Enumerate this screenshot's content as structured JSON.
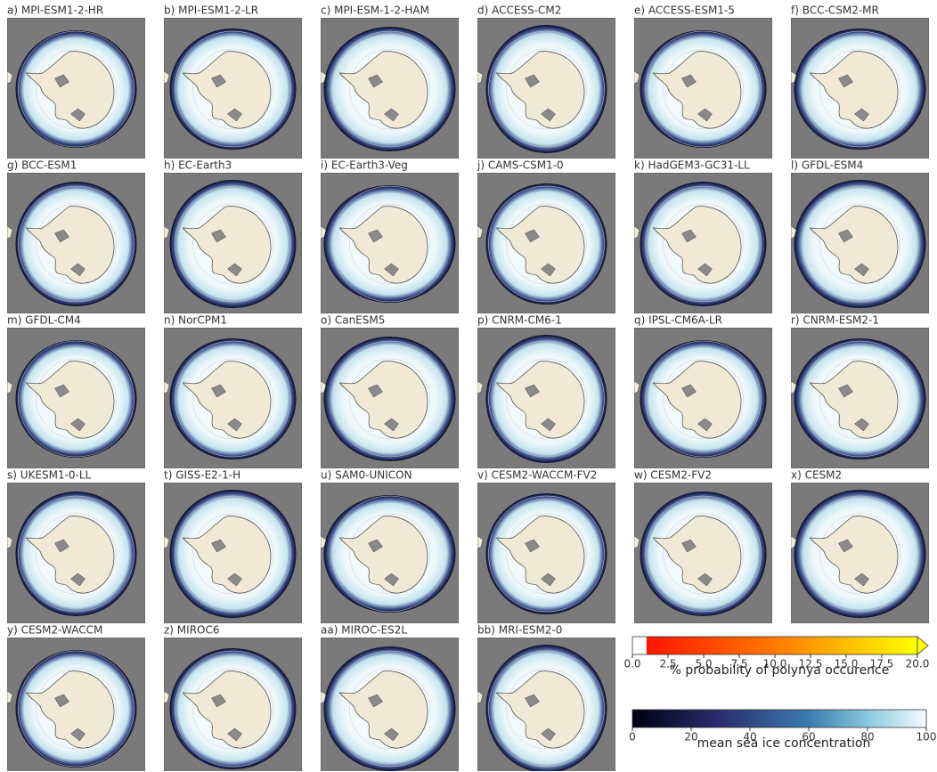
{
  "panels": [
    {
      "label": "a) MPI-ESM1-2-HR"
    },
    {
      "label": "b) MPI-ESM1-2-LR"
    },
    {
      "label": "c) MPI-ESM-1-2-HAM"
    },
    {
      "label": "d) ACCESS-CM2"
    },
    {
      "label": "e) ACCESS-ESM1-5"
    },
    {
      "label": "f) BCC-CSM2-MR"
    },
    {
      "label": "g) BCC-ESM1"
    },
    {
      "label": "h) EC-Earth3"
    },
    {
      "label": "i) EC-Earth3-Veg"
    },
    {
      "label": "j) CAMS-CSM1-0"
    },
    {
      "label": "k) HadGEM3-GC31-LL"
    },
    {
      "label": "l) GFDL-ESM4"
    },
    {
      "label": "m) GFDL-CM4"
    },
    {
      "label": "n) NorCPM1"
    },
    {
      "label": "o) CanESM5"
    },
    {
      "label": "p) CNRM-CM6-1"
    },
    {
      "label": "q) IPSL-CM6A-LR"
    },
    {
      "label": "r) CNRM-ESM2-1"
    },
    {
      "label": "s) UKESM1-0-LL"
    },
    {
      "label": "t) GISS-E2-1-H"
    },
    {
      "label": "u) SAM0-UNICON"
    },
    {
      "label": "v) CESM2-WACCM-FV2"
    },
    {
      "label": "w) CESM2-FV2"
    },
    {
      "label": "x) CESM2"
    },
    {
      "label": "y) CESM2-WACCM"
    },
    {
      "label": "z) MIROC6"
    },
    {
      "label": "aa) MIROC-ES2L"
    },
    {
      "label": "bb) MRI-ESM2-0"
    }
  ],
  "colorbars": [
    {
      "label": "% probability of polynya occurence",
      "lim": [
        0,
        20
      ],
      "ticks": [
        {
          "value": 0,
          "label": "0.0"
        },
        2.5,
        {
          "value": 5,
          "label": "5.0"
        },
        7.5,
        {
          "value": 10,
          "label": "10.0"
        },
        12.5,
        {
          "value": 15,
          "label": "15.0"
        },
        17.5,
        {
          "value": 20,
          "label": "20.0"
        }
      ]
    },
    {
      "label": "mean sea ice concentration",
      "lim": [
        0,
        100
      ],
      "ticks": [
        0,
        20,
        40,
        60,
        80,
        100
      ]
    }
  ]
}
